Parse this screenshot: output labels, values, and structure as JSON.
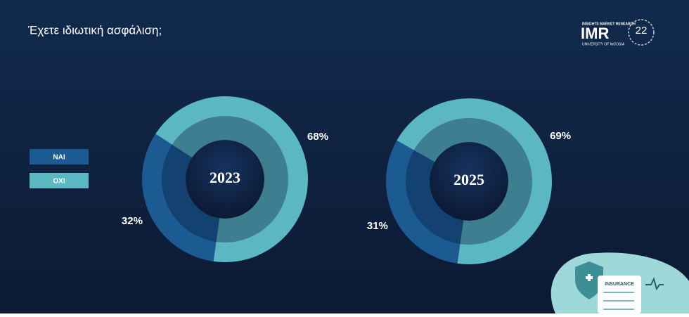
{
  "title": "Έχετε ιδιωτική ασφάλιση;",
  "logo": {
    "tagline": "INSIGHTS MARKET RESEARCH",
    "name": "IMR",
    "university": "UNIVERSITY OF NICOSIA",
    "anniversary": "22"
  },
  "illustration": {
    "label": "INSURANCE"
  },
  "chart_data": [
    {
      "type": "pie",
      "center_label": "2023",
      "categories": [
        "ΝΑΙ",
        "ΟΧΙ"
      ],
      "values": [
        32,
        68
      ],
      "value_labels": [
        "32%",
        "68%"
      ],
      "colors": [
        "#1b5b92",
        "#5bb8c3"
      ]
    },
    {
      "type": "pie",
      "center_label": "2025",
      "categories": [
        "ΝΑΙ",
        "ΟΧΙ"
      ],
      "values": [
        31,
        69
      ],
      "value_labels": [
        "31%",
        "69%"
      ],
      "colors": [
        "#1b5b92",
        "#5bb8c3"
      ]
    }
  ]
}
